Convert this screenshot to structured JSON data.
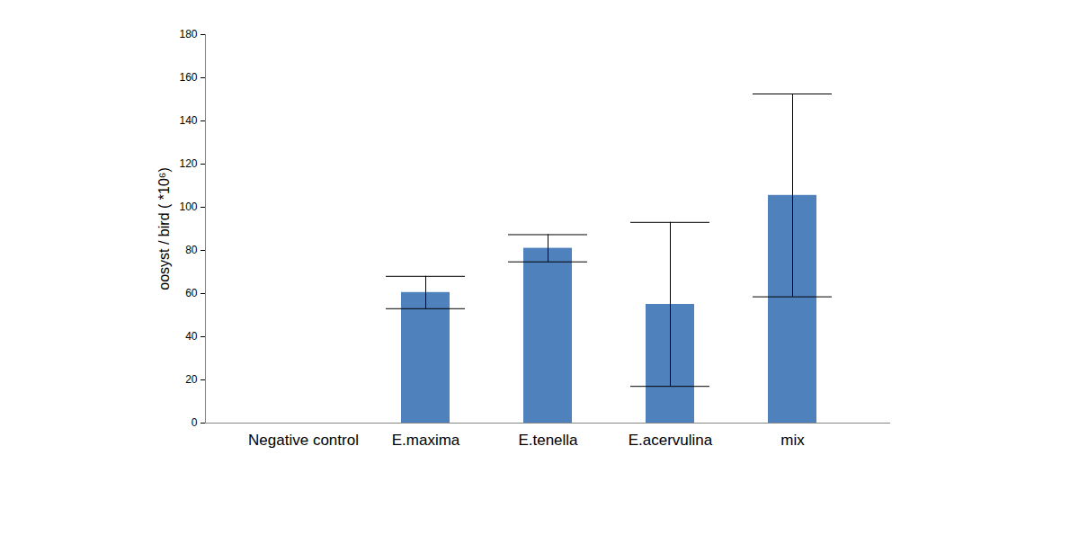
{
  "chart_data": {
    "type": "bar",
    "ylabel": "oosyst / bird ( *10⁶)",
    "categories": [
      "Negative control",
      "E.maxima",
      "E.tenella",
      "E.acervulina",
      "mix"
    ],
    "values": [
      0,
      60.5,
      81,
      55,
      105.5
    ],
    "errors": [
      null,
      7.5,
      6.3,
      38,
      47
    ],
    "color": "#4f81bd",
    "ylim": [
      0,
      180
    ],
    "yticks": [
      0,
      20,
      40,
      60,
      80,
      100,
      120,
      140,
      160,
      180
    ],
    "grid": false
  }
}
